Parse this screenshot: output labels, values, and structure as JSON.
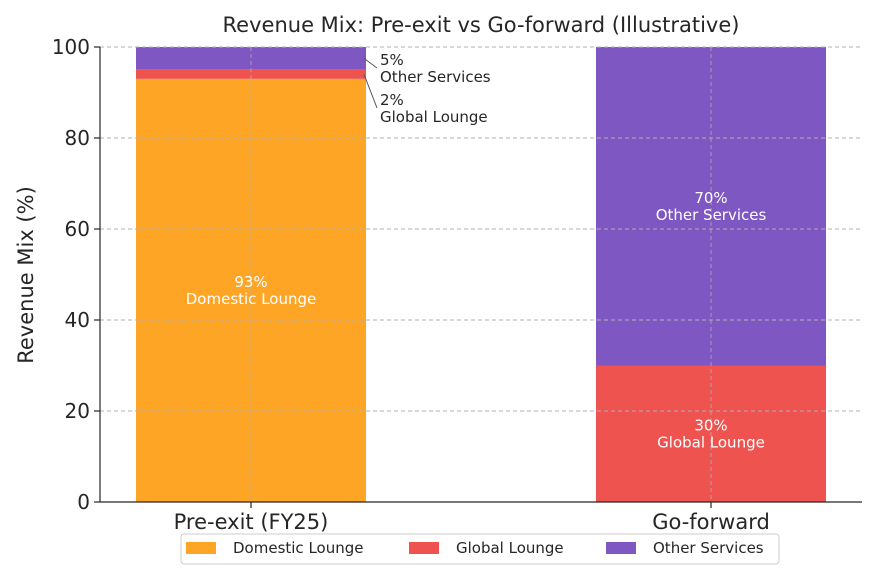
{
  "chart_data": {
    "type": "bar",
    "stacked": true,
    "title": "Revenue Mix: Pre-exit vs Go-forward (Illustrative)",
    "xlabel": "",
    "ylabel": "Revenue Mix (%)",
    "ylim": [
      0,
      100
    ],
    "yticks": [
      0,
      20,
      40,
      60,
      80,
      100
    ],
    "grid": true,
    "legend_position": "bottom-center",
    "categories": [
      "Pre-exit (FY25)",
      "Go-forward"
    ],
    "series": [
      {
        "name": "Domestic Lounge",
        "color": "#FFA526",
        "values": [
          93,
          0
        ]
      },
      {
        "name": "Global Lounge",
        "color": "#EF5350",
        "values": [
          2,
          30
        ]
      },
      {
        "name": "Other Services",
        "color": "#7E57C2",
        "values": [
          5,
          70
        ]
      }
    ],
    "data_labels": [
      {
        "category": 0,
        "series": 0,
        "text": "93%\nDomestic Lounge"
      },
      {
        "category": 0,
        "series": 1,
        "text": "2%\nGlobal Lounge"
      },
      {
        "category": 0,
        "series": 2,
        "text": "5%\nOther Services"
      },
      {
        "category": 1,
        "series": 1,
        "text": "30%\nGlobal Lounge"
      },
      {
        "category": 1,
        "series": 2,
        "text": "70%\nOther Services"
      }
    ]
  }
}
